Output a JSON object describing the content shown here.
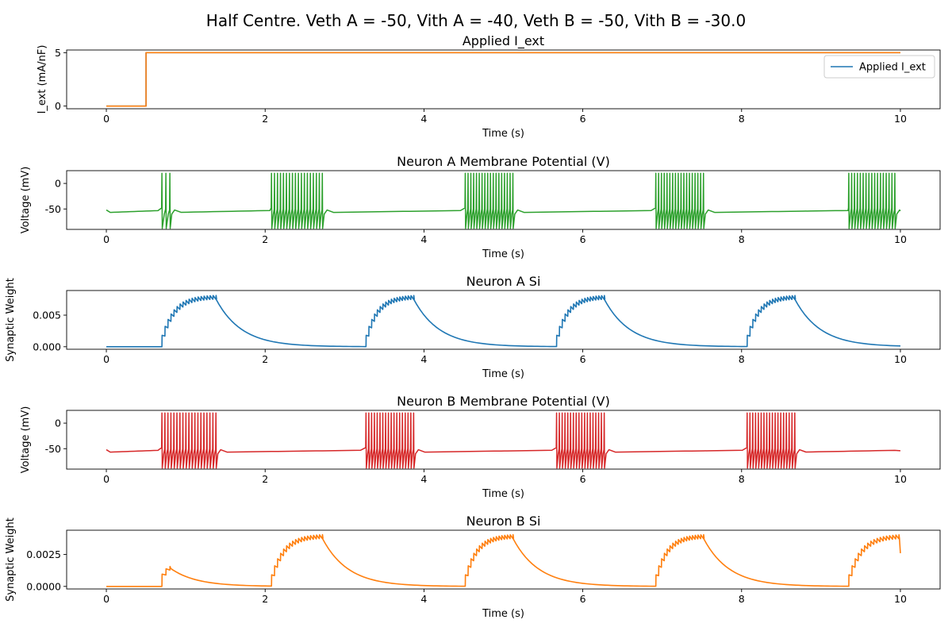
{
  "figure": {
    "suptitle": "Half Centre. Veth A = -50, Vith A = -40, Veth B = -50, Vith B = -30.0"
  },
  "chart_data": [
    {
      "type": "line",
      "title": "Applied I_ext",
      "xlabel": "Time (s)",
      "ylabel": "I_ext (mA/nF)",
      "xlim": [
        -0.5,
        10.5
      ],
      "ylim": [
        -0.25,
        5.25
      ],
      "xticks": [
        0,
        2,
        4,
        6,
        8,
        10
      ],
      "yticks": [
        0,
        5
      ],
      "legend": {
        "position": "top-right",
        "entries": [
          "Applied I_ext"
        ]
      },
      "series": [
        {
          "name": "Applied I_ext",
          "color": "#1f77b4",
          "kind": "step",
          "x": [
            0,
            0.5,
            0.5,
            10
          ],
          "y": [
            0,
            0,
            5,
            5
          ]
        },
        {
          "color": "#ff7f0e",
          "kind": "step",
          "x": [
            0,
            0.5,
            0.5,
            10
          ],
          "y": [
            0,
            0,
            5,
            5
          ]
        }
      ]
    },
    {
      "type": "line",
      "title": "Neuron A Membrane Potential (V)",
      "xlabel": "Time (s)",
      "ylabel": "Voltage (mV)",
      "xlim": [
        -0.5,
        10.5
      ],
      "ylim": [
        -90,
        25
      ],
      "xticks": [
        0,
        2,
        4,
        6,
        8,
        10
      ],
      "yticks": [
        0,
        -50
      ],
      "series": [
        {
          "color": "#2ca02c",
          "kind": "voltage",
          "rest": -55,
          "spike_peak": 20,
          "spike_trough": -88,
          "bursts": [
            {
              "start": 0.7,
              "end": 0.8,
              "count": 3
            },
            {
              "start": 2.08,
              "end": 2.72,
              "count": 18
            },
            {
              "start": 4.52,
              "end": 5.12,
              "count": 18
            },
            {
              "start": 6.92,
              "end": 7.52,
              "count": 18
            },
            {
              "start": 9.35,
              "end": 9.93,
              "count": 17
            }
          ]
        }
      ]
    },
    {
      "type": "line",
      "title": "Neuron A Si",
      "xlabel": "Time (s)",
      "ylabel": "Synaptic Weight",
      "xlim": [
        -0.5,
        10.5
      ],
      "ylim": [
        -0.0004,
        0.0089
      ],
      "xticks": [
        0,
        2,
        4,
        6,
        8,
        10
      ],
      "yticks": [
        0.0,
        0.005
      ],
      "ytick_labels": [
        "0.000",
        "0.005"
      ],
      "series": [
        {
          "color": "#1f77b4",
          "kind": "synaptic",
          "peak": 0.0082,
          "events": [
            {
              "start": 0.7,
              "end": 1.38,
              "count": 19
            },
            {
              "start": 3.27,
              "end": 3.87,
              "count": 18
            },
            {
              "start": 5.67,
              "end": 6.27,
              "count": 18
            },
            {
              "start": 8.07,
              "end": 8.67,
              "count": 18
            }
          ]
        }
      ]
    },
    {
      "type": "line",
      "title": "Neuron B Membrane Potential (V)",
      "xlabel": "Time (s)",
      "ylabel": "Voltage (mV)",
      "xlim": [
        -0.5,
        10.5
      ],
      "ylim": [
        -90,
        25
      ],
      "xticks": [
        0,
        2,
        4,
        6,
        8,
        10
      ],
      "yticks": [
        0,
        -50
      ],
      "series": [
        {
          "color": "#d62728",
          "kind": "voltage",
          "rest": -55,
          "spike_peak": 20,
          "spike_trough": -88,
          "bursts": [
            {
              "start": 0.7,
              "end": 1.38,
              "count": 19
            },
            {
              "start": 3.27,
              "end": 3.87,
              "count": 18
            },
            {
              "start": 5.67,
              "end": 6.27,
              "count": 18
            },
            {
              "start": 8.07,
              "end": 8.67,
              "count": 18
            }
          ]
        }
      ]
    },
    {
      "type": "line",
      "title": "Neuron B Si",
      "xlabel": "Time (s)",
      "ylabel": "Synaptic Weight",
      "xlim": [
        -0.5,
        10.5
      ],
      "ylim": [
        -0.0002,
        0.0044
      ],
      "xticks": [
        0,
        2,
        4,
        6,
        8,
        10
      ],
      "yticks": [
        0.0,
        0.0025
      ],
      "ytick_labels": [
        "0.0000",
        "0.0025"
      ],
      "series": [
        {
          "color": "#ff7f0e",
          "kind": "synaptic",
          "peak": 0.0041,
          "events": [
            {
              "start": 0.7,
              "end": 0.8,
              "count": 3,
              "peak": 0.0017
            },
            {
              "start": 2.08,
              "end": 2.72,
              "count": 18
            },
            {
              "start": 4.52,
              "end": 5.12,
              "count": 18
            },
            {
              "start": 6.92,
              "end": 7.52,
              "count": 18
            },
            {
              "start": 9.35,
              "end": 9.98,
              "count": 17,
              "tail": 0.0026
            }
          ]
        }
      ]
    }
  ]
}
